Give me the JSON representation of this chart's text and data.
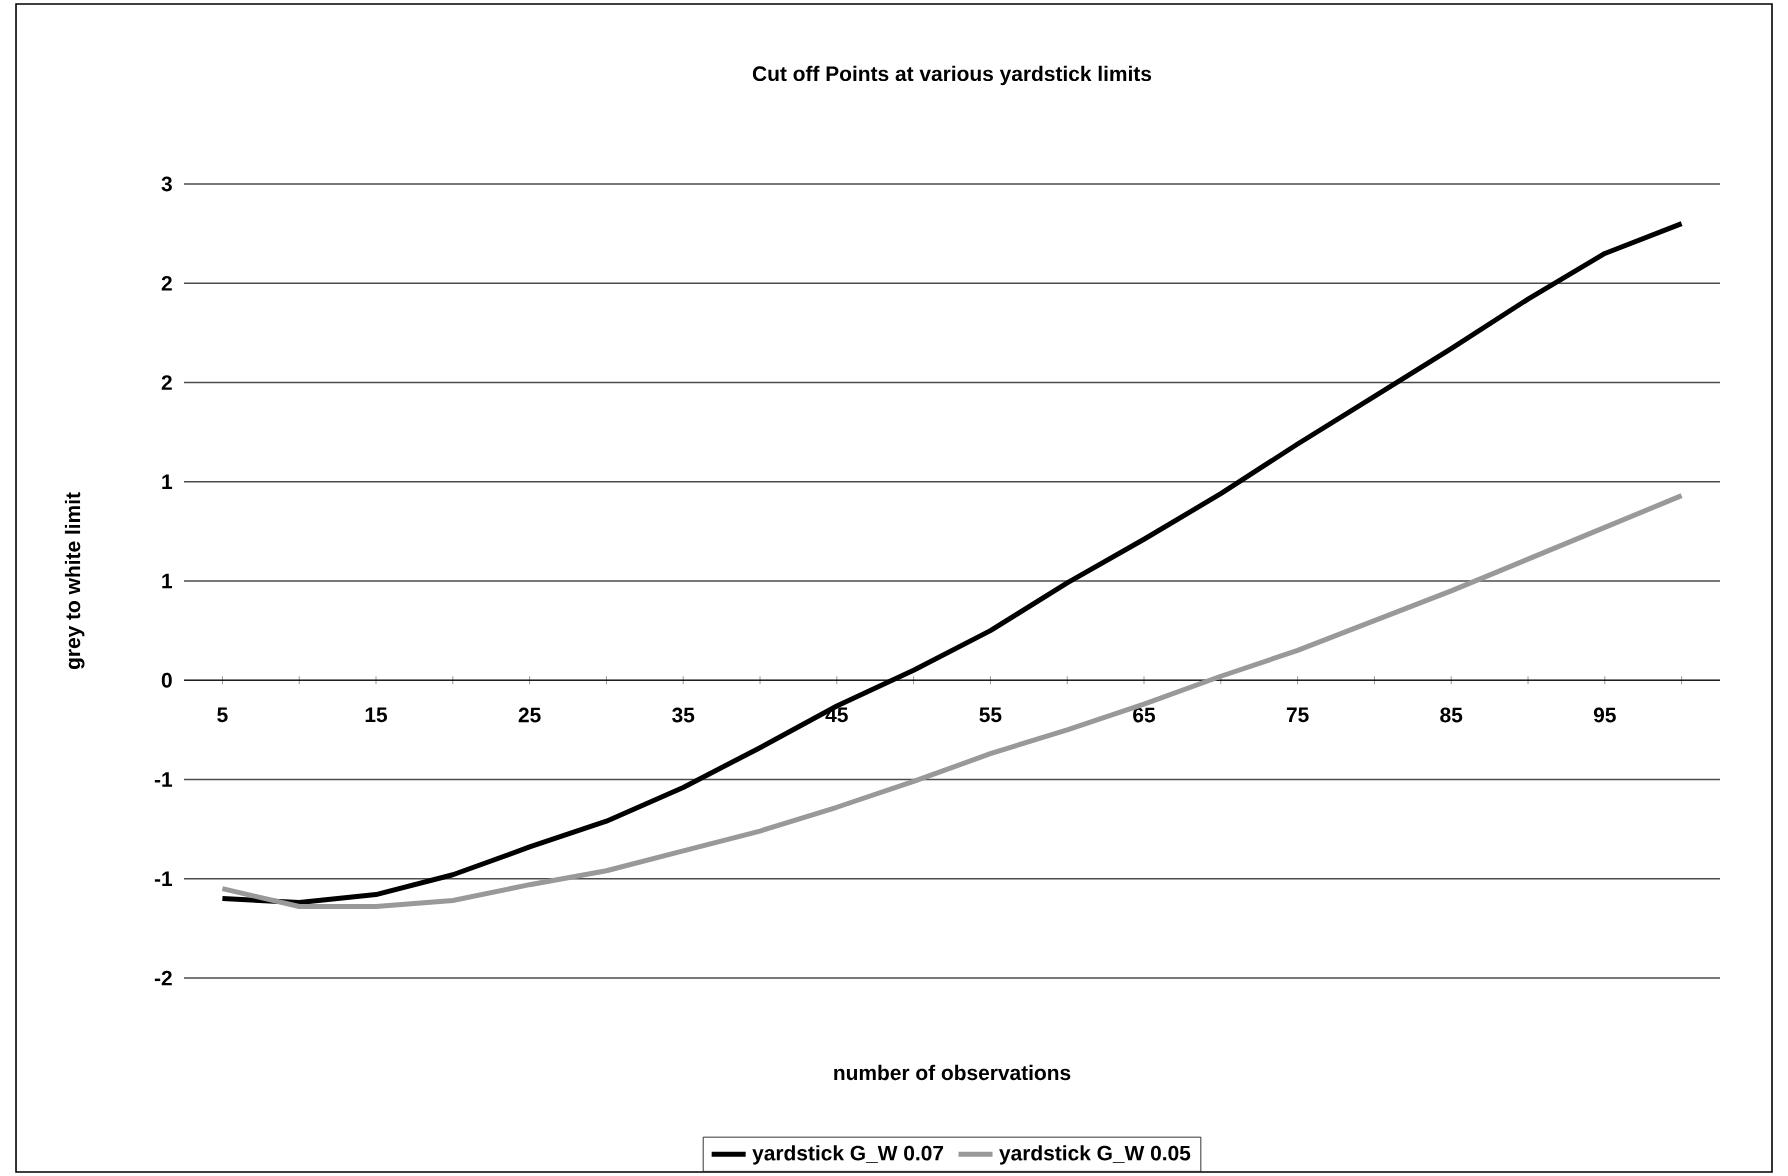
{
  "chart_data": {
    "type": "line",
    "title": "Cut off Points at various yardstick limits",
    "xlabel": "number of observations",
    "ylabel": "grey to white limit",
    "categories": [
      "5",
      null,
      "15",
      null,
      "25",
      null,
      "35",
      null,
      "45",
      null,
      "55",
      null,
      "65",
      null,
      "75",
      null,
      "85",
      null,
      "95",
      null
    ],
    "series": [
      {
        "name": "yardstick G_W 0.07",
        "color": "#000000",
        "values": [
          -1.1,
          -1.12,
          -1.08,
          -0.98,
          -0.84,
          -0.71,
          -0.54,
          -0.34,
          -0.13,
          0.05,
          0.25,
          0.49,
          0.71,
          0.94,
          1.19,
          1.43,
          1.67,
          1.92,
          2.15,
          2.3
        ]
      },
      {
        "name": "yardstick G_W 0.05",
        "color": "#999999",
        "values": [
          -1.05,
          -1.14,
          -1.14,
          -1.11,
          -1.03,
          -0.96,
          -0.86,
          -0.76,
          -0.64,
          -0.51,
          -0.37,
          -0.25,
          -0.12,
          0.02,
          0.15,
          0.3,
          0.45,
          0.61,
          0.77,
          0.93
        ]
      }
    ],
    "ylim": [
      -1.5,
      2.5
    ],
    "yticks": [
      {
        "value": -1.5,
        "label": "-2"
      },
      {
        "value": -1.0,
        "label": "-1"
      },
      {
        "value": -0.5,
        "label": "-1"
      },
      {
        "value": 0,
        "label": "0"
      },
      {
        "value": 0.5,
        "label": "1"
      },
      {
        "value": 1.0,
        "label": "1"
      },
      {
        "value": 1.5,
        "label": "2"
      },
      {
        "value": 2.0,
        "label": "2"
      },
      {
        "value": 2.5,
        "label": "3"
      }
    ],
    "grid": "y",
    "legend": "bottom"
  }
}
